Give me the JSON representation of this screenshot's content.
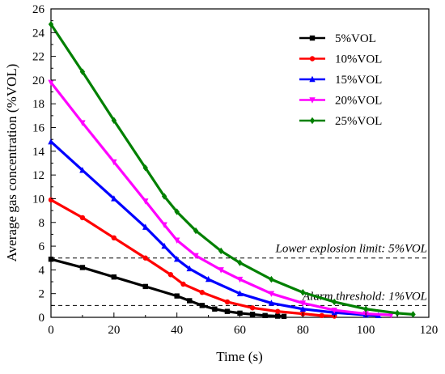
{
  "chart_data": {
    "type": "line",
    "xlabel": "Time (s)",
    "ylabel": "Average gas concentration (%VOL)",
    "xlim": [
      0,
      120
    ],
    "ylim": [
      0,
      26
    ],
    "xticks": [
      0,
      20,
      40,
      60,
      80,
      100,
      120
    ],
    "yticks": [
      0,
      2,
      4,
      6,
      8,
      10,
      12,
      14,
      16,
      18,
      20,
      22,
      24,
      26
    ],
    "grid": false,
    "legend_position": "top-right",
    "series": [
      {
        "name": "5%VOL",
        "color": "#000000",
        "marker": "square",
        "x": [
          0,
          10,
          20,
          30,
          40,
          44,
          48,
          52,
          56,
          60,
          64,
          68,
          72,
          74
        ],
        "y": [
          4.9,
          4.2,
          3.4,
          2.6,
          1.8,
          1.4,
          1.0,
          0.7,
          0.5,
          0.35,
          0.25,
          0.15,
          0.1,
          0.08
        ]
      },
      {
        "name": "10%VOL",
        "color": "#ff0000",
        "marker": "circle",
        "x": [
          0,
          10,
          20,
          30,
          38,
          42,
          48,
          56,
          64,
          72,
          80,
          86,
          90
        ],
        "y": [
          9.9,
          8.4,
          6.7,
          5.0,
          3.6,
          2.8,
          2.1,
          1.3,
          0.8,
          0.5,
          0.3,
          0.15,
          0.1
        ]
      },
      {
        "name": "15%VOL",
        "color": "#0000ff",
        "marker": "triangle-up",
        "x": [
          0,
          10,
          20,
          30,
          36,
          40,
          44,
          50,
          60,
          70,
          80,
          90,
          100,
          104
        ],
        "y": [
          14.8,
          12.4,
          10.0,
          7.6,
          6.0,
          4.9,
          4.1,
          3.2,
          2.0,
          1.2,
          0.7,
          0.4,
          0.2,
          0.15
        ]
      },
      {
        "name": "20%VOL",
        "color": "#ff00ff",
        "marker": "triangle-down",
        "x": [
          0,
          10,
          20,
          30,
          36,
          40,
          46,
          54,
          60,
          70,
          80,
          90,
          100,
          108
        ],
        "y": [
          19.8,
          16.4,
          13.1,
          9.8,
          7.8,
          6.5,
          5.2,
          4.0,
          3.2,
          2.0,
          1.2,
          0.6,
          0.3,
          0.2
        ]
      },
      {
        "name": "25%VOL",
        "color": "#008000",
        "marker": "diamond",
        "x": [
          0,
          10,
          20,
          30,
          36,
          40,
          46,
          54,
          60,
          70,
          80,
          90,
          100,
          110,
          115
        ],
        "y": [
          24.7,
          20.7,
          16.6,
          12.6,
          10.2,
          8.9,
          7.3,
          5.6,
          4.6,
          3.2,
          2.1,
          1.3,
          0.7,
          0.35,
          0.25
        ]
      }
    ],
    "reference_lines": [
      {
        "y": 5,
        "label": "Lower explosion limit: 5%VOL",
        "style": "dashed"
      },
      {
        "y": 1,
        "label": "Alarm threshold: 1%VOL",
        "style": "dashed"
      }
    ]
  }
}
